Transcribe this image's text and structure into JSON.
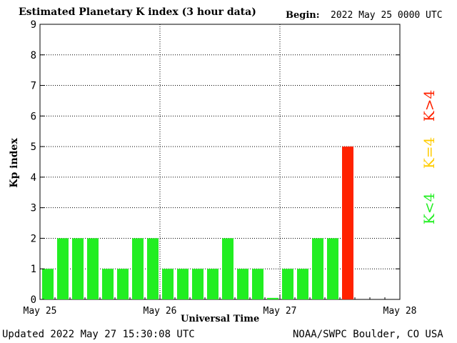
{
  "header": {
    "title": "Estimated Planetary K index (3 hour data)",
    "begin_label": "Begin:",
    "begin_value": "2022 May 25 0000 UTC"
  },
  "footer": {
    "updated": "Updated 2022 May 27 15:30:08 UTC",
    "credit": "NOAA/SWPC Boulder, CO USA"
  },
  "legend": [
    {
      "label": "K<4",
      "color": "#22ee22"
    },
    {
      "label": "K=4",
      "color": "#ffcc00"
    },
    {
      "label": "K>4",
      "color": "#ff2200"
    }
  ],
  "chart_data": {
    "type": "bar",
    "title": "Estimated Planetary K index (3 hour data)",
    "xlabel": "Universal Time",
    "ylabel": "Kp index",
    "ylim": [
      0,
      9
    ],
    "xlim_days": [
      0,
      3
    ],
    "grid": true,
    "legend_position": "right",
    "x_ticks": [
      "May 25",
      "May 26",
      "May 27",
      "May 28"
    ],
    "y_ticks": [
      "0",
      "1",
      "2",
      "3",
      "4",
      "5",
      "6",
      "7",
      "8",
      "9"
    ],
    "interval_hours": 3,
    "categories": [
      "May 25 00",
      "May 25 03",
      "May 25 06",
      "May 25 09",
      "May 25 12",
      "May 25 15",
      "May 25 18",
      "May 25 21",
      "May 26 00",
      "May 26 03",
      "May 26 06",
      "May 26 09",
      "May 26 12",
      "May 26 15",
      "May 26 18",
      "May 26 21",
      "May 27 00",
      "May 27 03",
      "May 27 06",
      "May 27 09",
      "May 27 12"
    ],
    "values": [
      1,
      2,
      2,
      2,
      1,
      1,
      2,
      2,
      1,
      1,
      1,
      1,
      2,
      1,
      1,
      0.05,
      1,
      1,
      2,
      2,
      5
    ],
    "colors": {
      "low": "#22ee22",
      "equal": "#ffcc00",
      "high": "#ff2200"
    }
  }
}
